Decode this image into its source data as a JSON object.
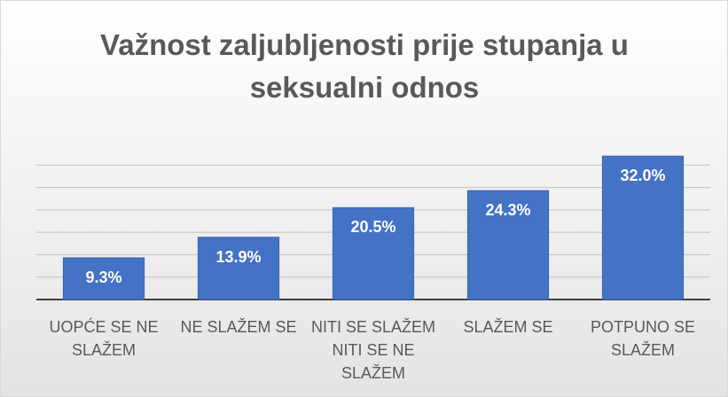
{
  "chart_data": {
    "type": "bar",
    "title": "Važnost zaljubljenosti prije stupanja u seksualni odnos",
    "categories": [
      "UOPĆE SE NE SLAŽEM",
      "NE SLAŽEM SE",
      "NITI SE SLAŽEM NITI SE NE SLAŽEM",
      "SLAŽEM SE",
      "POTPUNO SE SLAŽEM"
    ],
    "values": [
      9.3,
      13.9,
      20.5,
      24.3,
      32.0
    ],
    "value_labels": [
      "9.3%",
      "13.9%",
      "20.5%",
      "24.3%",
      "32.0%"
    ],
    "color": "#4472c4",
    "ylim": [
      0,
      35
    ],
    "yticks": [
      0,
      5,
      10,
      15,
      20,
      25,
      30
    ],
    "grid": true
  }
}
